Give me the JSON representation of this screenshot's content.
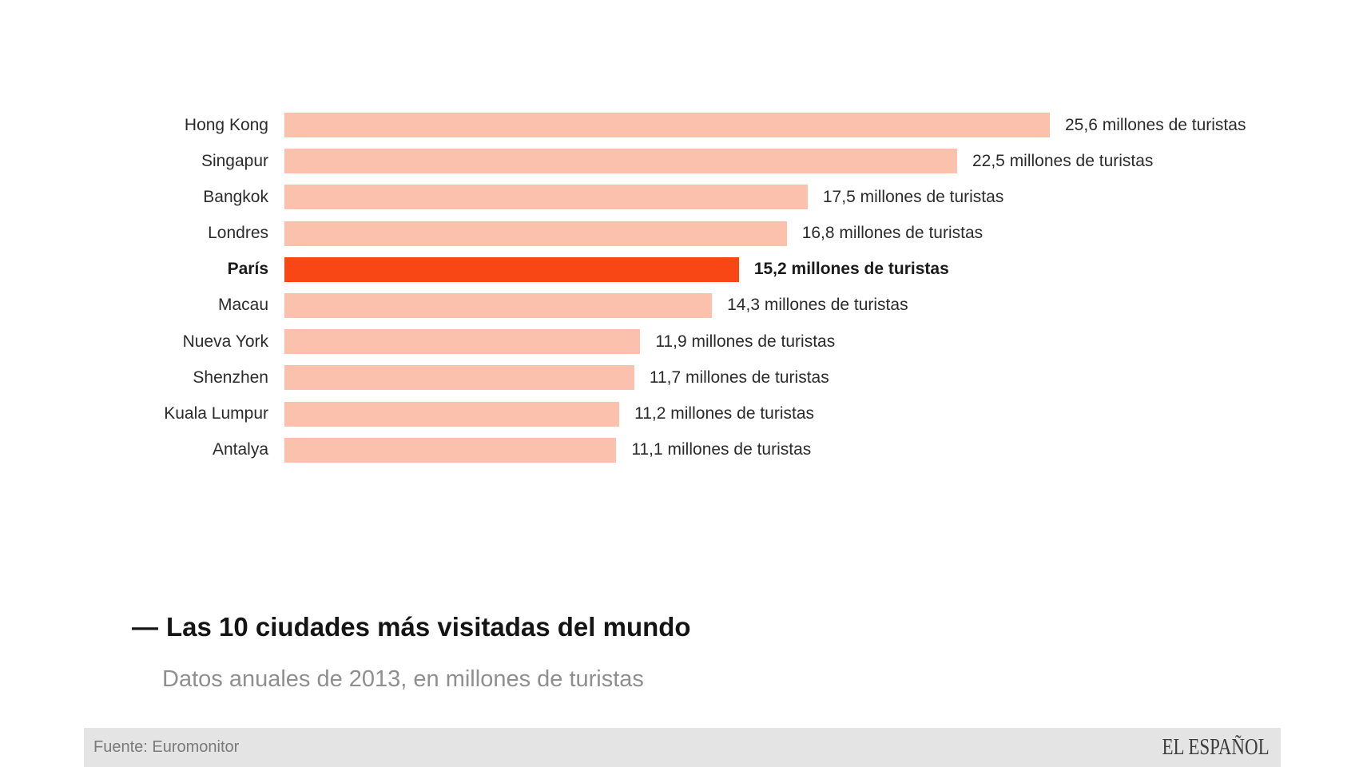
{
  "chart_data": {
    "type": "bar",
    "orientation": "horizontal",
    "title_prefix": "—",
    "title": "Las 10 ciudades más visitadas del mundo",
    "subtitle": "Datos anuales de 2013, en millones de turistas",
    "xlabel": "",
    "ylabel": "",
    "xlim": [
      0,
      25.6
    ],
    "grid": false,
    "legend": false,
    "categories": [
      "Hong Kong",
      "Singapur",
      "Bangkok",
      "Londres",
      "París",
      "Macau",
      "Nueva York",
      "Shenzhen",
      "Kuala Lumpur",
      "Antalya"
    ],
    "values": [
      25.6,
      22.5,
      17.5,
      16.8,
      15.2,
      14.3,
      11.9,
      11.7,
      11.2,
      11.1
    ],
    "value_labels": [
      "25,6 millones de turistas",
      "22,5 millones de turistas",
      "17,5 millones de turistas",
      "16,8 millones de turistas",
      "15,2 millones de turistas",
      "14,3 millones de turistas",
      "11,9 millones de turistas",
      "11,7 millones de turistas",
      "11,2 millones de turistas",
      "11,1 millones de turistas"
    ],
    "highlighted_index": 4,
    "highlighted_category": "París",
    "colors": {
      "bar": "#fcc1ac",
      "highlight": "#f94615"
    }
  },
  "footer": {
    "source": "Fuente: Euromonitor",
    "brand": "EL ESPAÑOL"
  }
}
